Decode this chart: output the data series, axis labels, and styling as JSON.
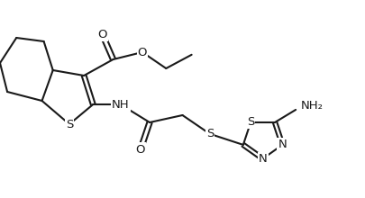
{
  "background": "#ffffff",
  "line_color": "#1a1a1a",
  "line_width": 1.5,
  "font_size": 9.5,
  "xlim": [
    0,
    10
  ],
  "ylim": [
    0,
    5.5
  ]
}
